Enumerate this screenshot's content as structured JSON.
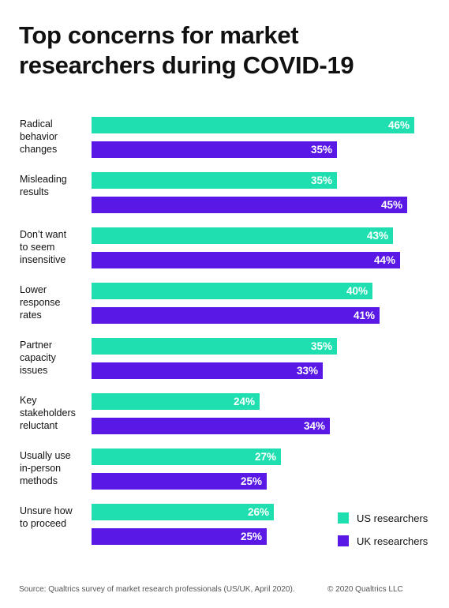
{
  "title": "Top concerns for market researchers during COVID-19",
  "source": "Source: Qualtrics survey of market research professionals (US/UK, April 2020).",
  "copyright": "© 2020 Qualtrics LLC",
  "chart_data": {
    "type": "bar",
    "orientation": "horizontal",
    "categories": [
      [
        "Radical",
        "behavior",
        "changes"
      ],
      [
        "Misleading",
        "results"
      ],
      [
        "Don’t want",
        "to seem",
        "insensitive"
      ],
      [
        "Lower",
        "response",
        "rates"
      ],
      [
        "Partner",
        "capacity",
        "issues"
      ],
      [
        "Key",
        "stakeholders",
        "reluctant"
      ],
      [
        "Usually use",
        "in-person",
        "methods"
      ],
      [
        "Unsure how",
        "to proceed"
      ]
    ],
    "series": [
      {
        "name": "US researchers",
        "color": "#1fdfb0",
        "values": [
          46,
          35,
          43,
          40,
          35,
          24,
          27,
          26
        ],
        "labels": [
          "46%",
          "35%",
          "43%",
          "40%",
          "35%",
          "24%",
          "27%",
          "26%"
        ]
      },
      {
        "name": "UK researchers",
        "color": "#5a18e6",
        "values": [
          35,
          45,
          44,
          41,
          33,
          34,
          25,
          25
        ],
        "labels": [
          "35%",
          "45%",
          "44%",
          "41%",
          "33%",
          "34%",
          "25%",
          "25%"
        ]
      }
    ],
    "xlim": [
      0,
      46
    ],
    "grid": false,
    "legend": "bottom-right"
  }
}
